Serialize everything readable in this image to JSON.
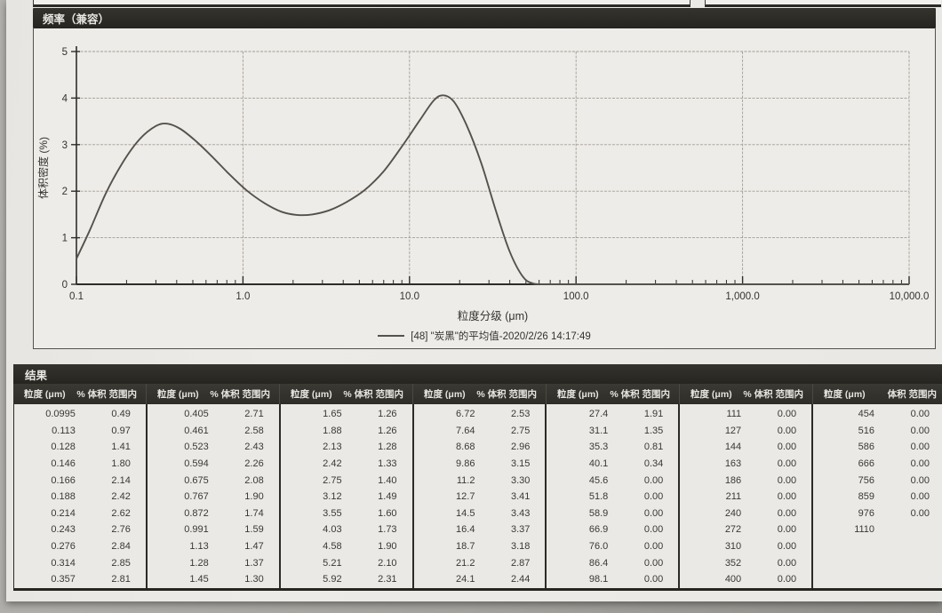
{
  "sections": {
    "frequency_header": "频率（兼容）",
    "results_header": "结果"
  },
  "chart_data": {
    "type": "line",
    "title": "频率（兼容）",
    "xlabel": "粒度分级 (μm)",
    "ylabel": "体积密度 (%)",
    "x_scale": "log",
    "xlim": [
      0.1,
      10000
    ],
    "ylim": [
      0,
      5
    ],
    "grid": true,
    "legend_position": "bottom",
    "legend_label": "[48] \"炭黑\"的平均值-2020/2/26 14:17:49",
    "x_ticks": [
      {
        "v": 0.1,
        "label": "0.1"
      },
      {
        "v": 1,
        "label": "1.0"
      },
      {
        "v": 10,
        "label": "10.0"
      },
      {
        "v": 100,
        "label": "100.0"
      },
      {
        "v": 1000,
        "label": "1,000.0"
      },
      {
        "v": 10000,
        "label": "10,000.0"
      }
    ],
    "y_ticks": [
      0,
      1,
      2,
      3,
      4,
      5
    ],
    "series": [
      {
        "name": "[48] \"炭黑\"的平均值-2020/2/26 14:17:49",
        "color": "#55524b",
        "points": [
          [
            0.1,
            0.55
          ],
          [
            0.12,
            1.15
          ],
          [
            0.15,
            1.95
          ],
          [
            0.19,
            2.62
          ],
          [
            0.24,
            3.12
          ],
          [
            0.3,
            3.4
          ],
          [
            0.35,
            3.45
          ],
          [
            0.42,
            3.34
          ],
          [
            0.52,
            3.08
          ],
          [
            0.65,
            2.75
          ],
          [
            0.82,
            2.38
          ],
          [
            1.05,
            2.02
          ],
          [
            1.35,
            1.74
          ],
          [
            1.7,
            1.56
          ],
          [
            2.1,
            1.49
          ],
          [
            2.6,
            1.5
          ],
          [
            3.3,
            1.59
          ],
          [
            4.2,
            1.77
          ],
          [
            5.4,
            2.03
          ],
          [
            7,
            2.43
          ],
          [
            9,
            2.96
          ],
          [
            11.5,
            3.52
          ],
          [
            14,
            3.95
          ],
          [
            16,
            4.06
          ],
          [
            18.5,
            3.92
          ],
          [
            22,
            3.42
          ],
          [
            27,
            2.6
          ],
          [
            33,
            1.58
          ],
          [
            40,
            0.7
          ],
          [
            48,
            0.16
          ],
          [
            55,
            0.02
          ],
          [
            62,
            0
          ],
          [
            100,
            0
          ],
          [
            300,
            0
          ],
          [
            1000,
            0
          ],
          [
            3000,
            0
          ],
          [
            10000,
            0
          ]
        ]
      }
    ]
  },
  "table": {
    "title": "结果",
    "col_headers": [
      "粒度 (μm)",
      "% 体积 范围内"
    ],
    "last_col_headers": [
      "粒度 (μm)",
      "体积 范围内"
    ],
    "row_count": 11,
    "groups": [
      [
        [
          "0.0995",
          "0.49"
        ],
        [
          "0.113",
          "0.97"
        ],
        [
          "0.128",
          "1.41"
        ],
        [
          "0.146",
          "1.80"
        ],
        [
          "0.166",
          "2.14"
        ],
        [
          "0.188",
          "2.42"
        ],
        [
          "0.214",
          "2.62"
        ],
        [
          "0.243",
          "2.76"
        ],
        [
          "0.276",
          "2.84"
        ],
        [
          "0.314",
          "2.85"
        ],
        [
          "0.357",
          "2.81"
        ]
      ],
      [
        [
          "0.405",
          "2.71"
        ],
        [
          "0.461",
          "2.58"
        ],
        [
          "0.523",
          "2.43"
        ],
        [
          "0.594",
          "2.26"
        ],
        [
          "0.675",
          "2.08"
        ],
        [
          "0.767",
          "1.90"
        ],
        [
          "0.872",
          "1.74"
        ],
        [
          "0.991",
          "1.59"
        ],
        [
          "1.13",
          "1.47"
        ],
        [
          "1.28",
          "1.37"
        ],
        [
          "1.45",
          "1.30"
        ]
      ],
      [
        [
          "1.65",
          "1.26"
        ],
        [
          "1.88",
          "1.26"
        ],
        [
          "2.13",
          "1.28"
        ],
        [
          "2.42",
          "1.33"
        ],
        [
          "2.75",
          "1.40"
        ],
        [
          "3.12",
          "1.49"
        ],
        [
          "3.55",
          "1.60"
        ],
        [
          "4.03",
          "1.73"
        ],
        [
          "4.58",
          "1.90"
        ],
        [
          "5.21",
          "2.10"
        ],
        [
          "5.92",
          "2.31"
        ]
      ],
      [
        [
          "6.72",
          "2.53"
        ],
        [
          "7.64",
          "2.75"
        ],
        [
          "8.68",
          "2.96"
        ],
        [
          "9.86",
          "3.15"
        ],
        [
          "11.2",
          "3.30"
        ],
        [
          "12.7",
          "3.41"
        ],
        [
          "14.5",
          "3.43"
        ],
        [
          "16.4",
          "3.37"
        ],
        [
          "18.7",
          "3.18"
        ],
        [
          "21.2",
          "2.87"
        ],
        [
          "24.1",
          "2.44"
        ]
      ],
      [
        [
          "27.4",
          "1.91"
        ],
        [
          "31.1",
          "1.35"
        ],
        [
          "35.3",
          "0.81"
        ],
        [
          "40.1",
          "0.34"
        ],
        [
          "45.6",
          "0.00"
        ],
        [
          "51.8",
          "0.00"
        ],
        [
          "58.9",
          "0.00"
        ],
        [
          "66.9",
          "0.00"
        ],
        [
          "76.0",
          "0.00"
        ],
        [
          "86.4",
          "0.00"
        ],
        [
          "98.1",
          "0.00"
        ]
      ],
      [
        [
          "111",
          "0.00"
        ],
        [
          "127",
          "0.00"
        ],
        [
          "144",
          "0.00"
        ],
        [
          "163",
          "0.00"
        ],
        [
          "186",
          "0.00"
        ],
        [
          "211",
          "0.00"
        ],
        [
          "240",
          "0.00"
        ],
        [
          "272",
          "0.00"
        ],
        [
          "310",
          "0.00"
        ],
        [
          "352",
          "0.00"
        ],
        [
          "400",
          "0.00"
        ]
      ],
      [
        [
          "454",
          "0.00"
        ],
        [
          "516",
          "0.00"
        ],
        [
          "586",
          "0.00"
        ],
        [
          "666",
          "0.00"
        ],
        [
          "756",
          "0.00"
        ],
        [
          "859",
          "0.00"
        ],
        [
          "976",
          "0.00"
        ],
        [
          "1110",
          ""
        ]
      ]
    ]
  },
  "colors": {
    "bar_background": "#2b2a25",
    "grid_line": "#a39d93",
    "axis_line": "#2e2d29",
    "curve": "#55524b",
    "paper": "#ebe9e5"
  }
}
